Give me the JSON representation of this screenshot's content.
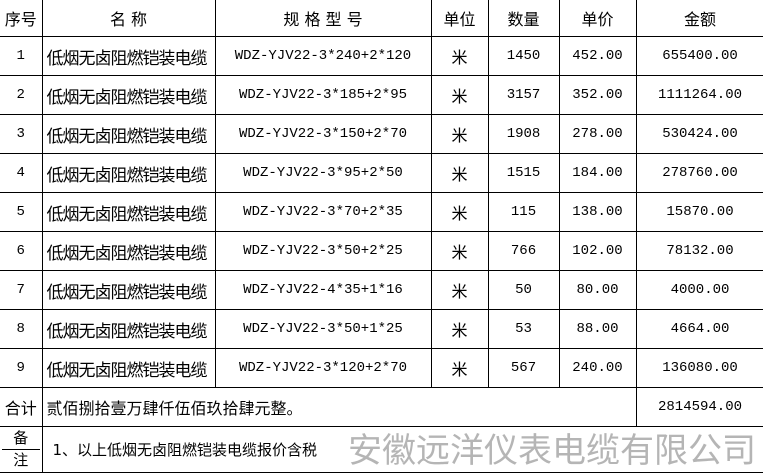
{
  "headers": [
    "序号",
    "名 称",
    "规 格 型 号",
    "单位",
    "数量",
    "单价",
    "金额"
  ],
  "rows": [
    {
      "no": "1",
      "name": "低烟无卤阻燃铠装电缆",
      "spec": "WDZ-YJV22-3*240+2*120",
      "unit": "米",
      "qty": "1450",
      "price": "452.00",
      "amount": "655400.00"
    },
    {
      "no": "2",
      "name": "低烟无卤阻燃铠装电缆",
      "spec": "WDZ-YJV22-3*185+2*95",
      "unit": "米",
      "qty": "3157",
      "price": "352.00",
      "amount": "1111264.00"
    },
    {
      "no": "3",
      "name": "低烟无卤阻燃铠装电缆",
      "spec": "WDZ-YJV22-3*150+2*70",
      "unit": "米",
      "qty": "1908",
      "price": "278.00",
      "amount": "530424.00"
    },
    {
      "no": "4",
      "name": "低烟无卤阻燃铠装电缆",
      "spec": "WDZ-YJV22-3*95+2*50",
      "unit": "米",
      "qty": "1515",
      "price": "184.00",
      "amount": "278760.00"
    },
    {
      "no": "5",
      "name": "低烟无卤阻燃铠装电缆",
      "spec": "WDZ-YJV22-3*70+2*35",
      "unit": "米",
      "qty": "115",
      "price": "138.00",
      "amount": "15870.00"
    },
    {
      "no": "6",
      "name": "低烟无卤阻燃铠装电缆",
      "spec": "WDZ-YJV22-3*50+2*25",
      "unit": "米",
      "qty": "766",
      "price": "102.00",
      "amount": "78132.00"
    },
    {
      "no": "7",
      "name": "低烟无卤阻燃铠装电缆",
      "spec": "WDZ-YJV22-4*35+1*16",
      "unit": "米",
      "qty": "50",
      "price": "80.00",
      "amount": "4000.00"
    },
    {
      "no": "8",
      "name": "低烟无卤阻燃铠装电缆",
      "spec": "WDZ-YJV22-3*50+1*25",
      "unit": "米",
      "qty": "53",
      "price": "88.00",
      "amount": "4664.00"
    },
    {
      "no": "9",
      "name": "低烟无卤阻燃铠装电缆",
      "spec": "WDZ-YJV22-3*120+2*70",
      "unit": "米",
      "qty": "567",
      "price": "240.00",
      "amount": "136080.00"
    }
  ],
  "total": {
    "label": "合计",
    "text": "贰佰捌拾壹万肆仟伍佰玖拾肆元整。",
    "amount": "2814594.00"
  },
  "remark": {
    "label_top": "备",
    "label_bottom": "注",
    "text": "1、以上低烟无卤阻燃铠装电缆报价含税"
  },
  "watermark": "安徽远洋仪表电缆有限公司"
}
